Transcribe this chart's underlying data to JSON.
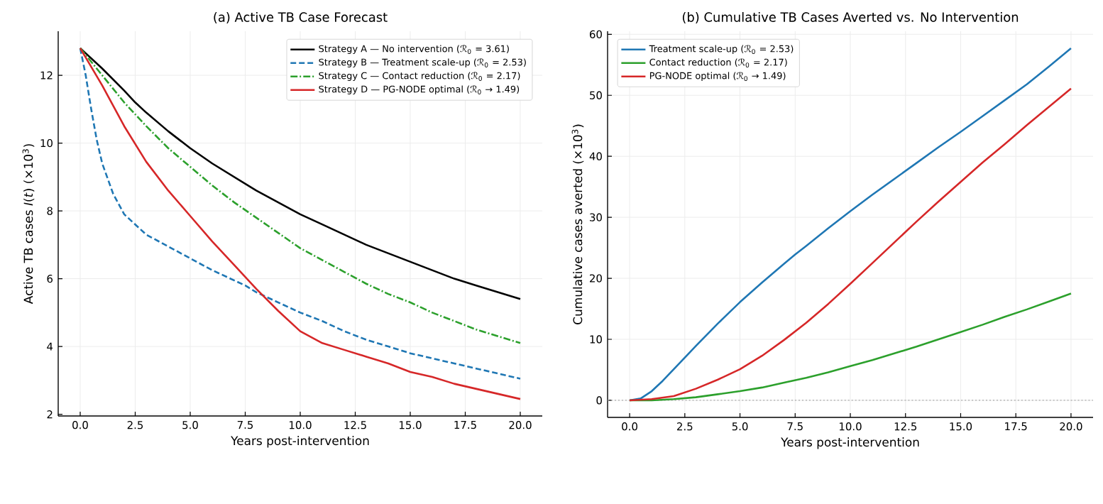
{
  "chart_data": [
    {
      "type": "line",
      "title": "(a) Active TB Case Forecast",
      "xlabel": "Years post-intervention",
      "ylabel": "Active TB cases *I*(*t*) (×10$^{3}$)",
      "xlim": [
        -1,
        21
      ],
      "ylim": [
        1.95,
        13.3
      ],
      "xticks": [
        {
          "value": 0,
          "label": "0.0"
        },
        {
          "value": 2.5,
          "label": "2.5"
        },
        {
          "value": 5,
          "label": "5.0"
        },
        {
          "value": 7.5,
          "label": "7.5"
        },
        {
          "value": 10,
          "label": "10.0"
        },
        {
          "value": 12.5,
          "label": "12.5"
        },
        {
          "value": 15,
          "label": "15.0"
        },
        {
          "value": 17.5,
          "label": "17.5"
        },
        {
          "value": 20,
          "label": "20.0"
        }
      ],
      "yticks": [
        2,
        4,
        6,
        8,
        10,
        12
      ],
      "grid": true,
      "legend": "top right",
      "series": [
        {
          "name": "Strategy A — No intervention (ℛ$_{0}$ = 3.61)",
          "color": "#000000",
          "line_style": "solid",
          "x": [
            0,
            1,
            2,
            2.5,
            3,
            4,
            5,
            6,
            7,
            8,
            9,
            10,
            11,
            12,
            13,
            14,
            15,
            16,
            17,
            18,
            19,
            20
          ],
          "values": [
            12.8,
            12.2,
            11.55,
            11.2,
            10.9,
            10.35,
            9.85,
            9.4,
            9.0,
            8.6,
            8.25,
            7.9,
            7.6,
            7.3,
            7.0,
            6.75,
            6.5,
            6.25,
            6.0,
            5.8,
            5.6,
            5.4
          ]
        },
        {
          "name": "Strategy B — Treatment scale-up (ℛ$_{0}$ = 2.53)",
          "color": "#1f77b4",
          "line_style": "dashed",
          "x": [
            0,
            0.25,
            0.5,
            0.75,
            1,
            1.5,
            2,
            2.5,
            3,
            4,
            5,
            6,
            7,
            7.5,
            8,
            9,
            10,
            11,
            12,
            13,
            14,
            15,
            16,
            17,
            18,
            19,
            20
          ],
          "values": [
            12.8,
            12.0,
            11.0,
            10.1,
            9.4,
            8.5,
            7.9,
            7.6,
            7.3,
            6.95,
            6.6,
            6.25,
            5.95,
            5.8,
            5.6,
            5.3,
            5.0,
            4.75,
            4.45,
            4.2,
            4.0,
            3.8,
            3.65,
            3.5,
            3.35,
            3.2,
            3.05
          ]
        },
        {
          "name": "Strategy C — Contact reduction (ℛ$_{0}$ = 2.17)",
          "color": "#2ca02c",
          "line_style": "dashdot",
          "x": [
            0,
            1,
            2,
            3,
            4,
            5,
            6,
            7,
            8,
            9,
            10,
            11,
            12,
            13,
            14,
            15,
            16,
            17,
            18,
            19,
            20
          ],
          "values": [
            12.8,
            12.0,
            11.2,
            10.5,
            9.85,
            9.3,
            8.75,
            8.25,
            7.8,
            7.35,
            6.9,
            6.55,
            6.2,
            5.85,
            5.55,
            5.3,
            5.0,
            4.75,
            4.5,
            4.3,
            4.1
          ]
        },
        {
          "name": "Strategy D — PG-NODE optimal (ℛ$_{0}$ → 1.49)",
          "color": "#d62728",
          "line_style": "solid",
          "x": [
            0,
            1,
            2,
            3,
            4,
            5,
            6,
            7,
            8,
            9,
            10,
            11,
            12,
            13,
            14,
            15,
            16,
            17,
            18,
            19,
            20
          ],
          "values": [
            12.8,
            11.7,
            10.5,
            9.45,
            8.6,
            7.85,
            7.1,
            6.4,
            5.7,
            5.05,
            4.45,
            4.1,
            3.9,
            3.7,
            3.5,
            3.25,
            3.1,
            2.9,
            2.75,
            2.6,
            2.45
          ]
        }
      ]
    },
    {
      "type": "line",
      "title": "(b) Cumulative TB Cases Averted vs. No Intervention",
      "xlabel": "Years post-intervention",
      "ylabel": "Cumulative cases averted (×10$^{3}$)",
      "xlim": [
        -1,
        21
      ],
      "ylim": [
        -2.8,
        60.5
      ],
      "xticks": [
        {
          "value": 0,
          "label": "0.0"
        },
        {
          "value": 2.5,
          "label": "2.5"
        },
        {
          "value": 5,
          "label": "5.0"
        },
        {
          "value": 7.5,
          "label": "7.5"
        },
        {
          "value": 10,
          "label": "10.0"
        },
        {
          "value": 12.5,
          "label": "12.5"
        },
        {
          "value": 15,
          "label": "15.0"
        },
        {
          "value": 17.5,
          "label": "17.5"
        },
        {
          "value": 20,
          "label": "20.0"
        }
      ],
      "yticks": [
        0,
        10,
        20,
        30,
        40,
        50,
        60
      ],
      "grid": true,
      "legend": "top left",
      "ref_lines": [
        {
          "axis": "y",
          "value": 0,
          "color": "#aaaaaa",
          "line_style": "dotted"
        }
      ],
      "series": [
        {
          "name": "Treatment scale-up (ℛ$_{0}$ = 2.53)",
          "color": "#1f77b4",
          "line_style": "solid",
          "x": [
            0,
            0.5,
            1,
            1.5,
            2,
            2.5,
            3,
            4,
            5,
            6,
            7,
            7.5,
            8,
            9,
            10,
            11,
            12,
            13,
            14,
            15,
            16,
            17,
            18,
            19,
            20
          ],
          "values": [
            0,
            0.3,
            1.5,
            3.2,
            5.1,
            7,
            8.9,
            12.6,
            16.1,
            19.3,
            22.4,
            23.9,
            25.3,
            28.2,
            31,
            33.7,
            36.3,
            38.9,
            41.5,
            44,
            46.6,
            49.2,
            51.8,
            54.7,
            57.7
          ]
        },
        {
          "name": "Contact reduction (ℛ$_{0}$ = 2.17)",
          "color": "#2ca02c",
          "line_style": "solid",
          "x": [
            0,
            1,
            2,
            3,
            4,
            5,
            6,
            7,
            8,
            9,
            10,
            11,
            12,
            13,
            14,
            15,
            16,
            17,
            18,
            19,
            20
          ],
          "values": [
            0,
            0,
            0.2,
            0.5,
            1,
            1.5,
            2.1,
            2.9,
            3.7,
            4.6,
            5.6,
            6.6,
            7.7,
            8.8,
            10,
            11.2,
            12.4,
            13.7,
            14.9,
            16.2,
            17.5
          ]
        },
        {
          "name": "PG-NODE optimal (ℛ$_{0}$ → 1.49)",
          "color": "#d62728",
          "line_style": "solid",
          "x": [
            0,
            1,
            2,
            3,
            4,
            5,
            6,
            7,
            8,
            9,
            10,
            11,
            12,
            13,
            14,
            15,
            16,
            17,
            18,
            19,
            20
          ],
          "values": [
            0,
            0.2,
            0.7,
            1.9,
            3.4,
            5.1,
            7.3,
            9.9,
            12.7,
            15.8,
            19.1,
            22.5,
            25.9,
            29.3,
            32.6,
            35.8,
            39,
            42,
            45.1,
            48.1,
            51.1
          ]
        }
      ]
    }
  ]
}
